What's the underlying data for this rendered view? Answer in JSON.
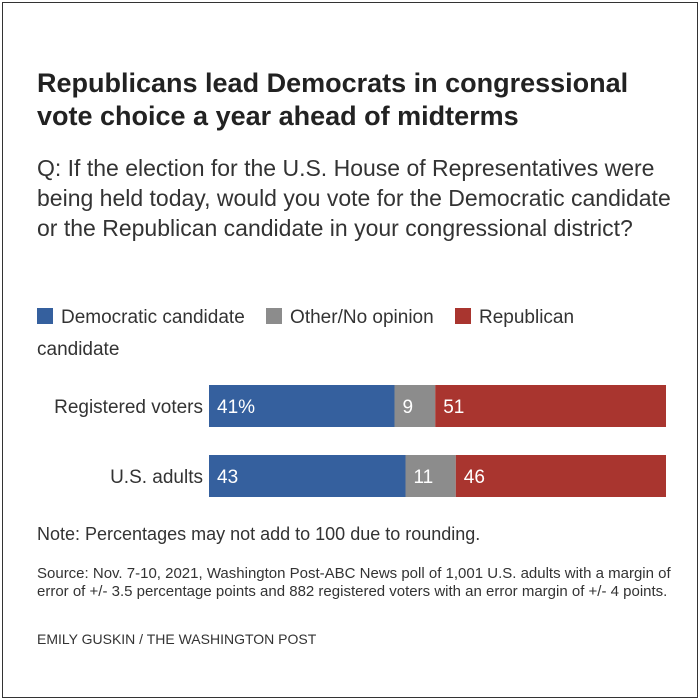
{
  "title": "Republicans lead Democrats in congressional vote choice a year ahead of midterms",
  "question": "Q: If the election for the U.S. House of Representatives were being held today, would you vote for the Democratic candidate or the Republican candidate in your congressional district?",
  "legend": {
    "democratic": "Democratic candidate",
    "other": "Other/No opinion",
    "republican": "Republican candidate"
  },
  "colors": {
    "democratic": "#35609e",
    "other": "#8c8c8c",
    "republican": "#a9352f"
  },
  "chart_data": {
    "type": "bar",
    "orientation": "horizontal",
    "stacked": true,
    "categories": [
      "Registered voters",
      "U.S. adults"
    ],
    "series": [
      {
        "name": "Democratic candidate",
        "values": [
          41,
          43
        ],
        "labels": [
          "41%",
          "43"
        ]
      },
      {
        "name": "Other/No opinion",
        "values": [
          9,
          11
        ],
        "labels": [
          "9",
          "11"
        ]
      },
      {
        "name": "Republican candidate",
        "values": [
          51,
          46
        ],
        "labels": [
          "51",
          "46"
        ]
      }
    ],
    "title": "Republicans lead Democrats in congressional vote choice a year ahead of midterms",
    "xlabel": "",
    "ylabel": "",
    "legend_position": "top",
    "grid": false
  },
  "note": "Note: Percentages may not add to 100 due to rounding.",
  "source": "Source: Nov. 7-10, 2021, Washington Post-ABC News poll of 1,001 U.S. adults with a margin of error of +/- 3.5 percentage points and 882 registered voters with an error margin of +/- 4 points.",
  "credit": "EMILY GUSKIN / THE WASHINGTON POST"
}
